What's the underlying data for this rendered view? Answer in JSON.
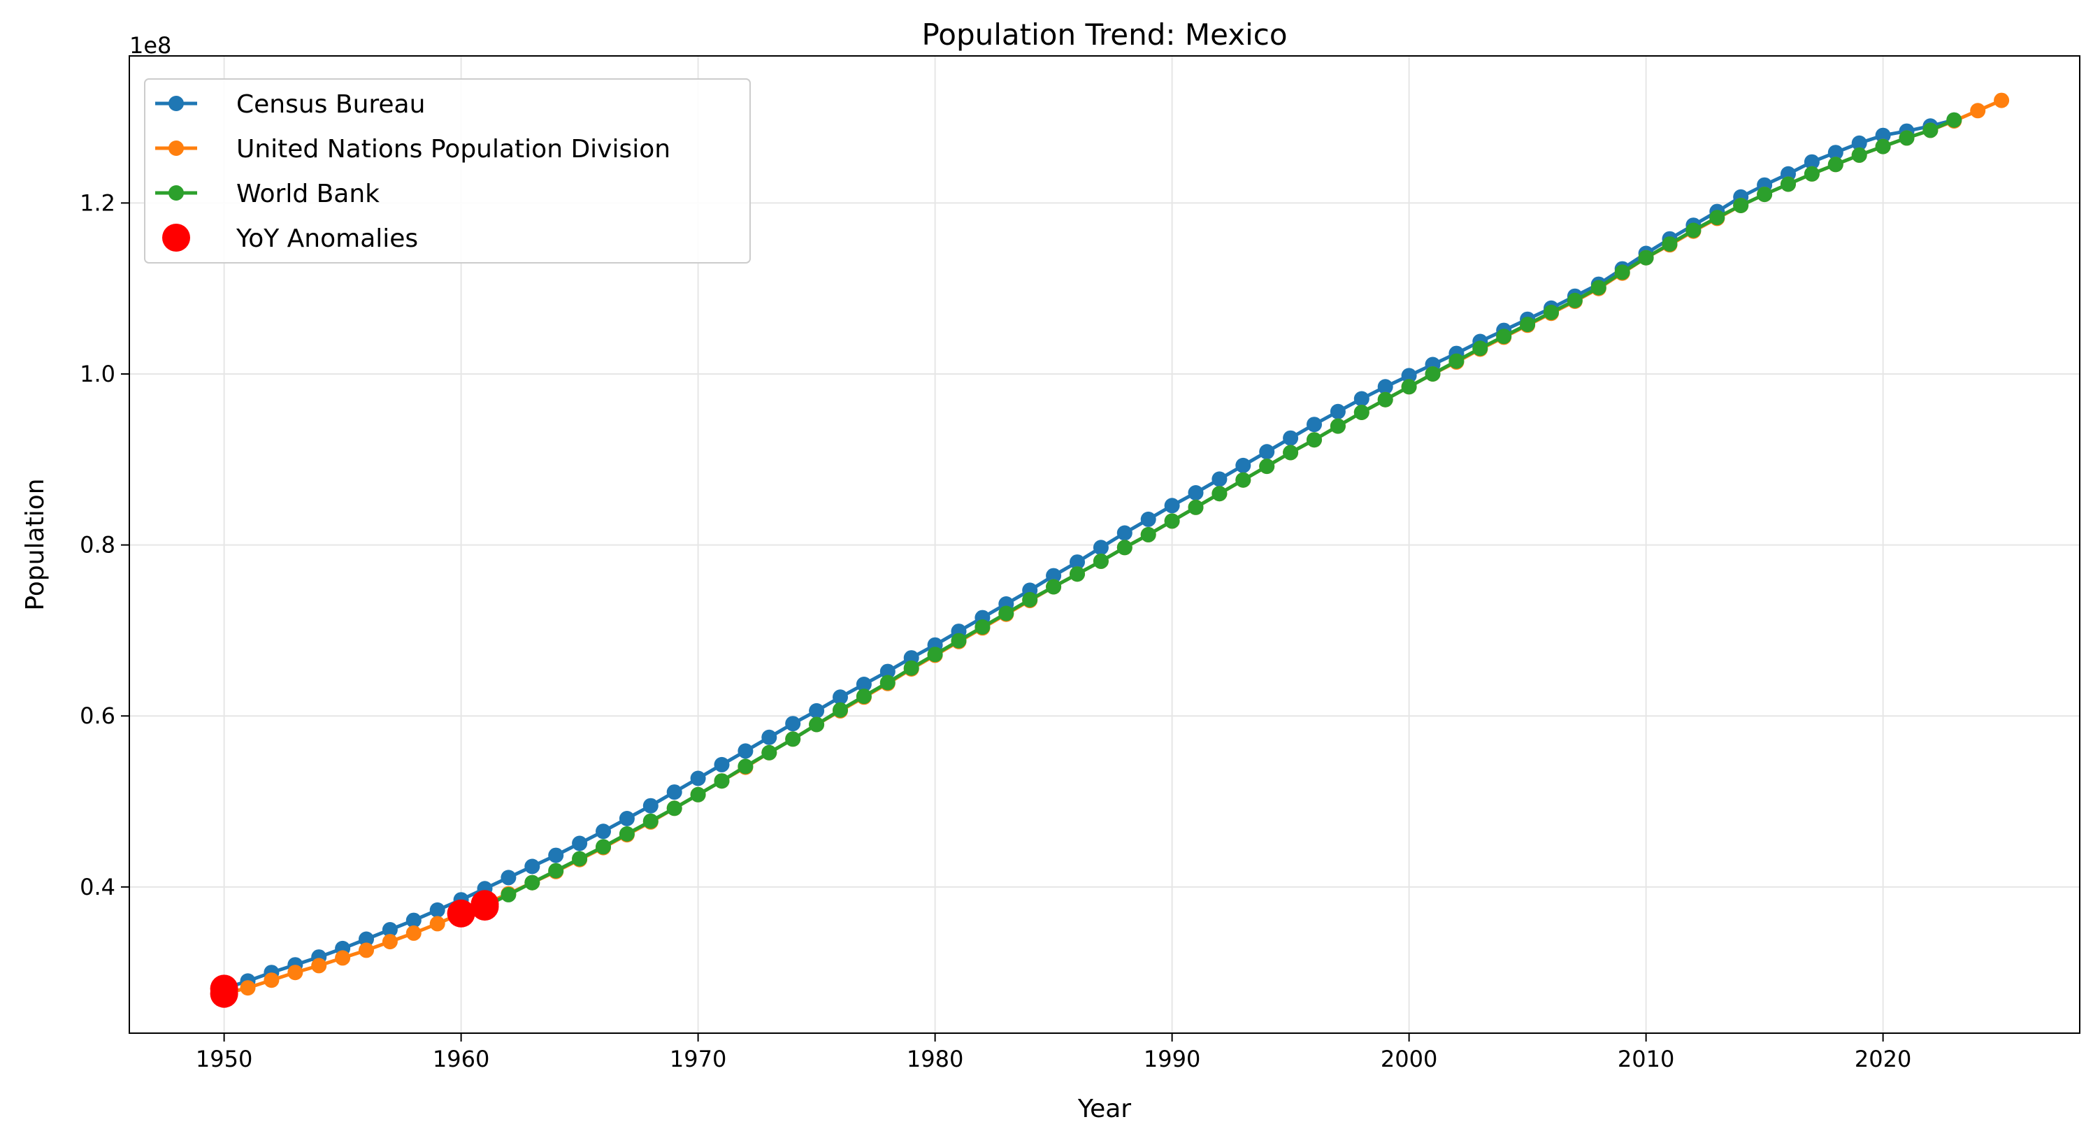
{
  "chart_data": {
    "type": "line",
    "title": "Population Trend: Mexico",
    "xlabel": "Year",
    "ylabel": "Population",
    "y_offset_label": "1e8",
    "xlim": [
      1946,
      2028.3
    ],
    "ylim": [
      0.229,
      1.372
    ],
    "x_ticks": [
      1950,
      1960,
      1970,
      1980,
      1990,
      2000,
      2010,
      2020
    ],
    "y_ticks": [
      0.4,
      0.6,
      0.8,
      1.0,
      1.2
    ],
    "y_tick_labels": [
      "0.4",
      "0.6",
      "0.8",
      "1.0",
      "1.2"
    ],
    "grid": true,
    "legend_position": "upper-left",
    "series": [
      {
        "name": "Census Bureau",
        "color": "#1f77b4",
        "x_start": 1950,
        "values": [
          0.281,
          0.29,
          0.3,
          0.309,
          0.318,
          0.328,
          0.339,
          0.35,
          0.361,
          0.373,
          0.385,
          0.398,
          0.411,
          0.424,
          0.437,
          0.451,
          0.465,
          0.48,
          0.495,
          0.511,
          0.527,
          0.543,
          0.559,
          0.575,
          0.591,
          0.606,
          0.622,
          0.637,
          0.652,
          0.668,
          0.683,
          0.699,
          0.715,
          0.731,
          0.747,
          0.764,
          0.78,
          0.797,
          0.814,
          0.83,
          0.846,
          0.861,
          0.877,
          0.893,
          0.909,
          0.925,
          0.941,
          0.956,
          0.971,
          0.985,
          0.998,
          1.011,
          1.024,
          1.038,
          1.051,
          1.064,
          1.077,
          1.091,
          1.105,
          1.123,
          1.141,
          1.158,
          1.174,
          1.19,
          1.207,
          1.221,
          1.234,
          1.248,
          1.259,
          1.27,
          1.279,
          1.284,
          1.29,
          1.297
        ]
      },
      {
        "name": "United Nations Population Division",
        "color": "#ff7f0e",
        "x_start": 1950,
        "values": [
          0.275,
          0.282,
          0.291,
          0.3,
          0.308,
          0.317,
          0.326,
          0.336,
          0.346,
          0.357,
          0.369,
          0.38,
          0.392,
          0.405,
          0.418,
          0.432,
          0.446,
          0.461,
          0.476,
          0.492,
          0.508,
          0.524,
          0.54,
          0.557,
          0.573,
          0.59,
          0.606,
          0.622,
          0.638,
          0.655,
          0.671,
          0.687,
          0.703,
          0.719,
          0.735,
          0.751,
          0.766,
          0.781,
          0.797,
          0.812,
          0.828,
          0.844,
          0.86,
          0.876,
          0.892,
          0.908,
          0.923,
          0.939,
          0.955,
          0.97,
          0.985,
          1.0,
          1.014,
          1.029,
          1.043,
          1.057,
          1.071,
          1.085,
          1.1,
          1.118,
          1.136,
          1.151,
          1.167,
          1.182,
          1.197,
          1.21,
          1.222,
          1.234,
          1.245,
          1.256,
          1.266,
          1.276,
          1.285,
          1.296,
          1.308,
          1.32
        ]
      },
      {
        "name": "World Bank",
        "color": "#2ca02c",
        "x_start": 1961,
        "values": [
          0.377,
          0.391,
          0.405,
          0.419,
          0.433,
          0.447,
          0.462,
          0.477,
          0.492,
          0.508,
          0.524,
          0.541,
          0.557,
          0.573,
          0.59,
          0.607,
          0.623,
          0.639,
          0.656,
          0.672,
          0.688,
          0.704,
          0.72,
          0.736,
          0.751,
          0.766,
          0.781,
          0.797,
          0.812,
          0.828,
          0.844,
          0.86,
          0.876,
          0.892,
          0.908,
          0.923,
          0.939,
          0.955,
          0.97,
          0.985,
          1.0,
          1.015,
          1.03,
          1.044,
          1.058,
          1.072,
          1.086,
          1.101,
          1.119,
          1.136,
          1.152,
          1.168,
          1.183,
          1.197,
          1.21,
          1.222,
          1.234,
          1.245,
          1.256,
          1.266,
          1.276,
          1.285,
          1.297
        ]
      }
    ],
    "anomalies": {
      "name": "YoY Anomalies",
      "color": "#ff0000",
      "points": [
        {
          "x": 1950,
          "y": 0.281
        },
        {
          "x": 1950,
          "y": 0.275
        },
        {
          "x": 1960,
          "y": 0.369
        },
        {
          "x": 1961,
          "y": 0.38
        },
        {
          "x": 1961,
          "y": 0.377
        }
      ]
    }
  }
}
